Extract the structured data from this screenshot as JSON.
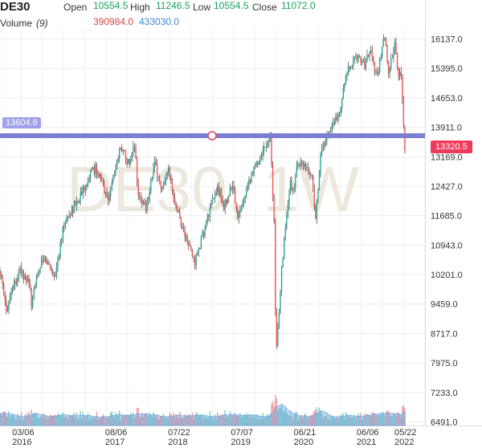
{
  "header": {
    "symbol": "DE30",
    "open_label": "Open",
    "open_value": "10554.5",
    "high_label": "High",
    "high_value": "11246.5",
    "low_label": "Low",
    "low_value": "10554.5",
    "close_label": "Close",
    "close_value": "11072.0",
    "volume_label": "Volume",
    "volume_param": "(9)",
    "volume_value_1": "390984.0",
    "volume_value_2": "433030.0"
  },
  "badges": {
    "last_price": "13320.5",
    "horizontal_line": "13604.6"
  },
  "watermark": "DE30, 1W",
  "colors": {
    "up": "#26a69a",
    "down": "#ef5350",
    "hline": "#7b7fd1",
    "price_badge": "#f03a5a",
    "vol_ma": "#6fa6e0"
  },
  "chart_data": {
    "type": "candlestick",
    "title": "DE30",
    "interval": "1W",
    "y_axis_position": "right",
    "y_ticks": [
      "16137.0",
      "15395.0",
      "14653.0",
      "13911.0",
      "13169.0",
      "12427.0",
      "11685.0",
      "10943.0",
      "10201.0",
      "9459.0",
      "8717.0",
      "7975.0",
      "7233.0",
      "6491.0"
    ],
    "ylim": [
      6400,
      16380
    ],
    "x_ticks": [
      {
        "label": "03/06",
        "year": "2016",
        "date": "2016-03-06"
      },
      {
        "label": "08/06",
        "year": "2017",
        "date": "2017-08-06"
      },
      {
        "label": "07/22",
        "year": "2018",
        "date": "2018-07-22"
      },
      {
        "label": "07/07",
        "year": "2019",
        "date": "2019-07-07"
      },
      {
        "label": "06/21",
        "year": "2020",
        "date": "2020-06-21"
      },
      {
        "label": "06/06",
        "year": "2021",
        "date": "2021-06-06"
      },
      {
        "label": "05/22",
        "year": "2022",
        "date": "2022-05-22"
      }
    ],
    "xlim": [
      "2016-01-03",
      "2022-06-26"
    ],
    "grid": true,
    "horizontal_line": 13604.6,
    "last_price": 13320.5,
    "close_path": [
      [
        "2016-01-03",
        10283
      ],
      [
        "2016-02-07",
        9300
      ],
      [
        "2016-03-06",
        9820
      ],
      [
        "2016-04-24",
        10300
      ],
      [
        "2016-06-19",
        9900
      ],
      [
        "2016-06-26",
        9280
      ],
      [
        "2016-07-24",
        10200
      ],
      [
        "2016-09-04",
        10600
      ],
      [
        "2016-11-06",
        10200
      ],
      [
        "2016-12-25",
        11500
      ],
      [
        "2017-03-05",
        12000
      ],
      [
        "2017-05-14",
        12700
      ],
      [
        "2017-06-18",
        12900
      ],
      [
        "2017-08-27",
        12100
      ],
      [
        "2017-11-05",
        13450
      ],
      [
        "2017-12-24",
        12950
      ],
      [
        "2018-01-21",
        13500
      ],
      [
        "2018-02-11",
        12200
      ],
      [
        "2018-03-25",
        11900
      ],
      [
        "2018-05-13",
        13000
      ],
      [
        "2018-06-24",
        12300
      ],
      [
        "2018-07-29",
        12800
      ],
      [
        "2018-09-09",
        11950
      ],
      [
        "2018-10-28",
        11200
      ],
      [
        "2018-12-23",
        10500
      ],
      [
        "2019-03-03",
        11600
      ],
      [
        "2019-04-28",
        12400
      ],
      [
        "2019-06-02",
        11900
      ],
      [
        "2019-07-21",
        12500
      ],
      [
        "2019-08-18",
        11600
      ],
      [
        "2019-10-13",
        12500
      ],
      [
        "2019-12-29",
        13250
      ],
      [
        "2020-02-16",
        13750
      ],
      [
        "2020-03-08",
        11500
      ],
      [
        "2020-03-15",
        9200
      ],
      [
        "2020-03-22",
        8300
      ],
      [
        "2020-04-19",
        10400
      ],
      [
        "2020-06-07",
        12500
      ],
      [
        "2020-06-21",
        12300
      ],
      [
        "2020-07-19",
        13050
      ],
      [
        "2020-10-04",
        12700
      ],
      [
        "2020-10-25",
        11600
      ],
      [
        "2020-11-22",
        13250
      ],
      [
        "2020-12-27",
        13700
      ],
      [
        "2021-03-07",
        14300
      ],
      [
        "2021-04-18",
        15300
      ],
      [
        "2021-06-13",
        15700
      ],
      [
        "2021-07-25",
        15500
      ],
      [
        "2021-08-22",
        15900
      ],
      [
        "2021-10-03",
        15200
      ],
      [
        "2021-11-14",
        16200
      ],
      [
        "2021-12-05",
        15300
      ],
      [
        "2022-01-09",
        16000
      ],
      [
        "2022-01-23",
        15400
      ],
      [
        "2022-02-13",
        15100
      ],
      [
        "2022-02-20",
        14600
      ],
      [
        "2022-02-27",
        13900
      ],
      [
        "2022-03-06",
        13320.5
      ]
    ],
    "volume_indicator": {
      "name": "Volume",
      "param": 9,
      "values": [
        390984.0,
        433030.0
      ]
    }
  }
}
